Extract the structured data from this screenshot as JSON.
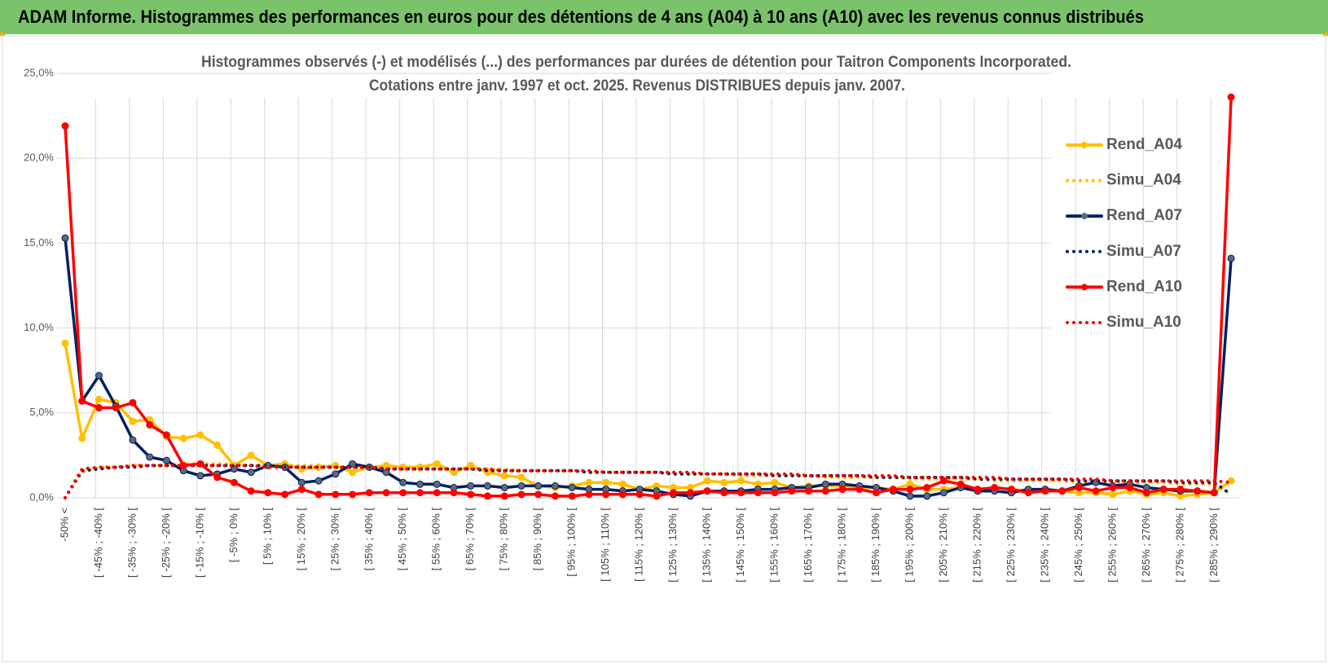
{
  "header": {
    "title": "ADAM Informe. Histogrammes des performances en euros pour des détentions de 4 ans (A04) à 10 ans (A10) avec les revenus connus distribués"
  },
  "chart_data": {
    "type": "line",
    "title": [
      "Histogrammes observés (-) et modélisés (...) des performances par durées de détention pour Taitron Components Incorporated.",
      "Cotations entre janv. 1997 et oct. 2025.  Revenus DISTRIBUES depuis janv. 2007."
    ],
    "categories": [
      "-50% <",
      null,
      "[ -45% ; -40% [",
      null,
      "[ -35% ; -30% [",
      null,
      "[ -25% ; -20% [",
      null,
      "[ -15% ; -10% [",
      null,
      "[ -5% ; 0% [",
      null,
      "[ 5% ; 10% [",
      null,
      "[ 15% ; 20% [",
      null,
      "[ 25% ; 30% [",
      null,
      "[ 35% ; 40% [",
      null,
      "[ 45% ; 50% [",
      null,
      "[ 55% ; 60% [",
      null,
      "[ 65% ; 70% [",
      null,
      "[ 75% ; 80% [",
      null,
      "[ 85% ; 90% [",
      null,
      "[ 95% ; 100% [",
      null,
      "[ 105% ; 110% [",
      null,
      "[ 115% ; 120% [",
      null,
      "[ 125% ; 130% [",
      null,
      "[ 135% ; 140% [",
      null,
      "[ 145% ; 150% [",
      null,
      "[ 155% ; 160% [",
      null,
      "[ 165% ; 170% [",
      null,
      "[ 175% ; 180% [",
      null,
      "[ 185% ; 190% [",
      null,
      "[ 195% ; 200% [",
      null,
      "[ 205% ; 210% [",
      null,
      "[ 215% ; 220% [",
      null,
      "[ 225% ; 230% [",
      null,
      "[ 235% ; 240% [",
      null,
      "[ 245% ; 250% [",
      null,
      "[ 255% ; 260% [",
      null,
      "[ 265% ; 270% [",
      null,
      "[ 275% ; 280% [",
      null,
      "[ 285% ; 290% [",
      null
    ],
    "series": [
      {
        "name": "Rend_A04",
        "color": "#ffc000",
        "dotted": false,
        "values": [
          9.1,
          3.5,
          5.8,
          5.6,
          4.5,
          4.6,
          3.6,
          3.5,
          3.7,
          3.1,
          1.9,
          2.5,
          1.9,
          2.0,
          1.7,
          1.8,
          1.9,
          1.5,
          1.8,
          1.9,
          1.8,
          1.8,
          2.0,
          1.5,
          1.9,
          1.5,
          1.3,
          1.2,
          0.7,
          0.6,
          0.7,
          0.9,
          0.9,
          0.8,
          0.5,
          0.7,
          0.6,
          0.6,
          1.0,
          0.9,
          1.0,
          0.8,
          0.9,
          0.6,
          0.7,
          0.7,
          0.7,
          0.6,
          0.6,
          0.5,
          0.8,
          0.5,
          0.5,
          0.6,
          0.4,
          0.6,
          0.5,
          0.4,
          0.5,
          0.4,
          0.3,
          0.3,
          0.2,
          0.4,
          0.2,
          0.3,
          0.1,
          0.2,
          0.3,
          1.0
        ]
      },
      {
        "name": "Simu_A04",
        "color": "#ffc000",
        "dotted": true,
        "values": [
          0.0,
          1.5,
          1.8,
          1.8,
          1.9,
          1.9,
          1.9,
          2.0,
          2.0,
          2.0,
          2.0,
          1.9,
          1.9,
          1.9,
          1.9,
          1.9,
          1.8,
          1.8,
          1.8,
          1.8,
          1.8,
          1.8,
          1.7,
          1.7,
          1.7,
          1.7,
          1.7,
          1.6,
          1.6,
          1.6,
          1.6,
          1.5,
          1.5,
          1.5,
          1.5,
          1.5,
          1.4,
          1.4,
          1.4,
          1.4,
          1.3,
          1.3,
          1.3,
          1.3,
          1.3,
          1.2,
          1.2,
          1.2,
          1.2,
          1.2,
          1.1,
          1.1,
          1.1,
          1.1,
          1.1,
          1.0,
          1.0,
          1.0,
          1.0,
          1.0,
          0.9,
          0.9,
          0.9,
          0.9,
          0.9,
          0.9,
          0.8,
          0.8,
          0.8,
          0.2
        ]
      },
      {
        "name": "Rend_A07",
        "color": "#002060",
        "dotted": false,
        "values": [
          15.3,
          5.7,
          7.2,
          5.4,
          3.4,
          2.4,
          2.2,
          1.6,
          1.3,
          1.4,
          1.7,
          1.5,
          1.9,
          1.8,
          0.9,
          1.0,
          1.4,
          2.0,
          1.8,
          1.5,
          0.9,
          0.8,
          0.8,
          0.6,
          0.7,
          0.7,
          0.6,
          0.7,
          0.7,
          0.7,
          0.6,
          0.5,
          0.5,
          0.4,
          0.5,
          0.4,
          0.2,
          0.1,
          0.4,
          0.4,
          0.4,
          0.5,
          0.5,
          0.6,
          0.6,
          0.8,
          0.8,
          0.7,
          0.6,
          0.4,
          0.1,
          0.1,
          0.3,
          0.6,
          0.4,
          0.4,
          0.3,
          0.5,
          0.5,
          0.4,
          0.7,
          0.9,
          0.7,
          0.8,
          0.6,
          0.5,
          0.4,
          0.4,
          0.3,
          14.1
        ]
      },
      {
        "name": "Simu_A07",
        "color": "#002060",
        "dotted": true,
        "values": [
          0.0,
          1.6,
          1.7,
          1.8,
          1.8,
          1.9,
          1.9,
          1.9,
          1.9,
          1.9,
          1.9,
          1.9,
          1.9,
          1.8,
          1.8,
          1.8,
          1.8,
          1.8,
          1.8,
          1.7,
          1.7,
          1.7,
          1.7,
          1.7,
          1.7,
          1.6,
          1.6,
          1.6,
          1.6,
          1.6,
          1.6,
          1.5,
          1.5,
          1.5,
          1.5,
          1.5,
          1.4,
          1.4,
          1.4,
          1.4,
          1.4,
          1.4,
          1.3,
          1.3,
          1.3,
          1.3,
          1.3,
          1.3,
          1.2,
          1.2,
          1.2,
          1.2,
          1.2,
          1.2,
          1.1,
          1.1,
          1.1,
          1.1,
          1.1,
          1.1,
          1.0,
          1.0,
          1.0,
          1.0,
          1.0,
          1.0,
          0.9,
          0.9,
          0.9,
          0.2
        ]
      },
      {
        "name": "Rend_A10",
        "color": "#ff0000",
        "dotted": false,
        "values": [
          21.9,
          5.7,
          5.3,
          5.3,
          5.6,
          4.3,
          3.7,
          1.9,
          2.0,
          1.2,
          0.9,
          0.4,
          0.3,
          0.2,
          0.5,
          0.2,
          0.2,
          0.2,
          0.3,
          0.3,
          0.3,
          0.3,
          0.3,
          0.3,
          0.2,
          0.1,
          0.1,
          0.2,
          0.2,
          0.1,
          0.1,
          0.2,
          0.2,
          0.2,
          0.2,
          0.1,
          0.3,
          0.3,
          0.4,
          0.3,
          0.3,
          0.3,
          0.3,
          0.4,
          0.4,
          0.4,
          0.5,
          0.5,
          0.3,
          0.5,
          0.5,
          0.6,
          1.0,
          0.8,
          0.5,
          0.6,
          0.5,
          0.3,
          0.4,
          0.4,
          0.6,
          0.4,
          0.6,
          0.6,
          0.3,
          0.5,
          0.5,
          0.4,
          0.3,
          23.6
        ]
      },
      {
        "name": "Simu_A10",
        "color": "#ff0000",
        "dotted": true,
        "values": [
          0.0,
          1.7,
          1.8,
          1.8,
          1.9,
          1.9,
          1.9,
          1.9,
          1.9,
          1.9,
          1.9,
          1.9,
          1.8,
          1.8,
          1.8,
          1.8,
          1.8,
          1.8,
          1.8,
          1.7,
          1.7,
          1.7,
          1.7,
          1.7,
          1.7,
          1.7,
          1.6,
          1.6,
          1.6,
          1.6,
          1.6,
          1.6,
          1.5,
          1.5,
          1.5,
          1.5,
          1.5,
          1.5,
          1.4,
          1.4,
          1.4,
          1.4,
          1.4,
          1.4,
          1.3,
          1.3,
          1.3,
          1.3,
          1.3,
          1.3,
          1.2,
          1.2,
          1.2,
          1.2,
          1.2,
          1.2,
          1.1,
          1.1,
          1.1,
          1.1,
          1.1,
          1.1,
          1.0,
          1.0,
          1.0,
          1.0,
          1.0,
          1.0,
          1.0,
          0.9
        ]
      }
    ],
    "ylim": [
      0,
      25
    ],
    "yticks": [
      {
        "value": 0,
        "label": "0,0%"
      },
      {
        "value": 5,
        "label": "5,0%"
      },
      {
        "value": 10,
        "label": "10,0%"
      },
      {
        "value": 15,
        "label": "15,0%"
      },
      {
        "value": 20,
        "label": "20,0%"
      },
      {
        "value": 25,
        "label": "25,0%"
      }
    ],
    "grid": true,
    "legend": "right"
  }
}
